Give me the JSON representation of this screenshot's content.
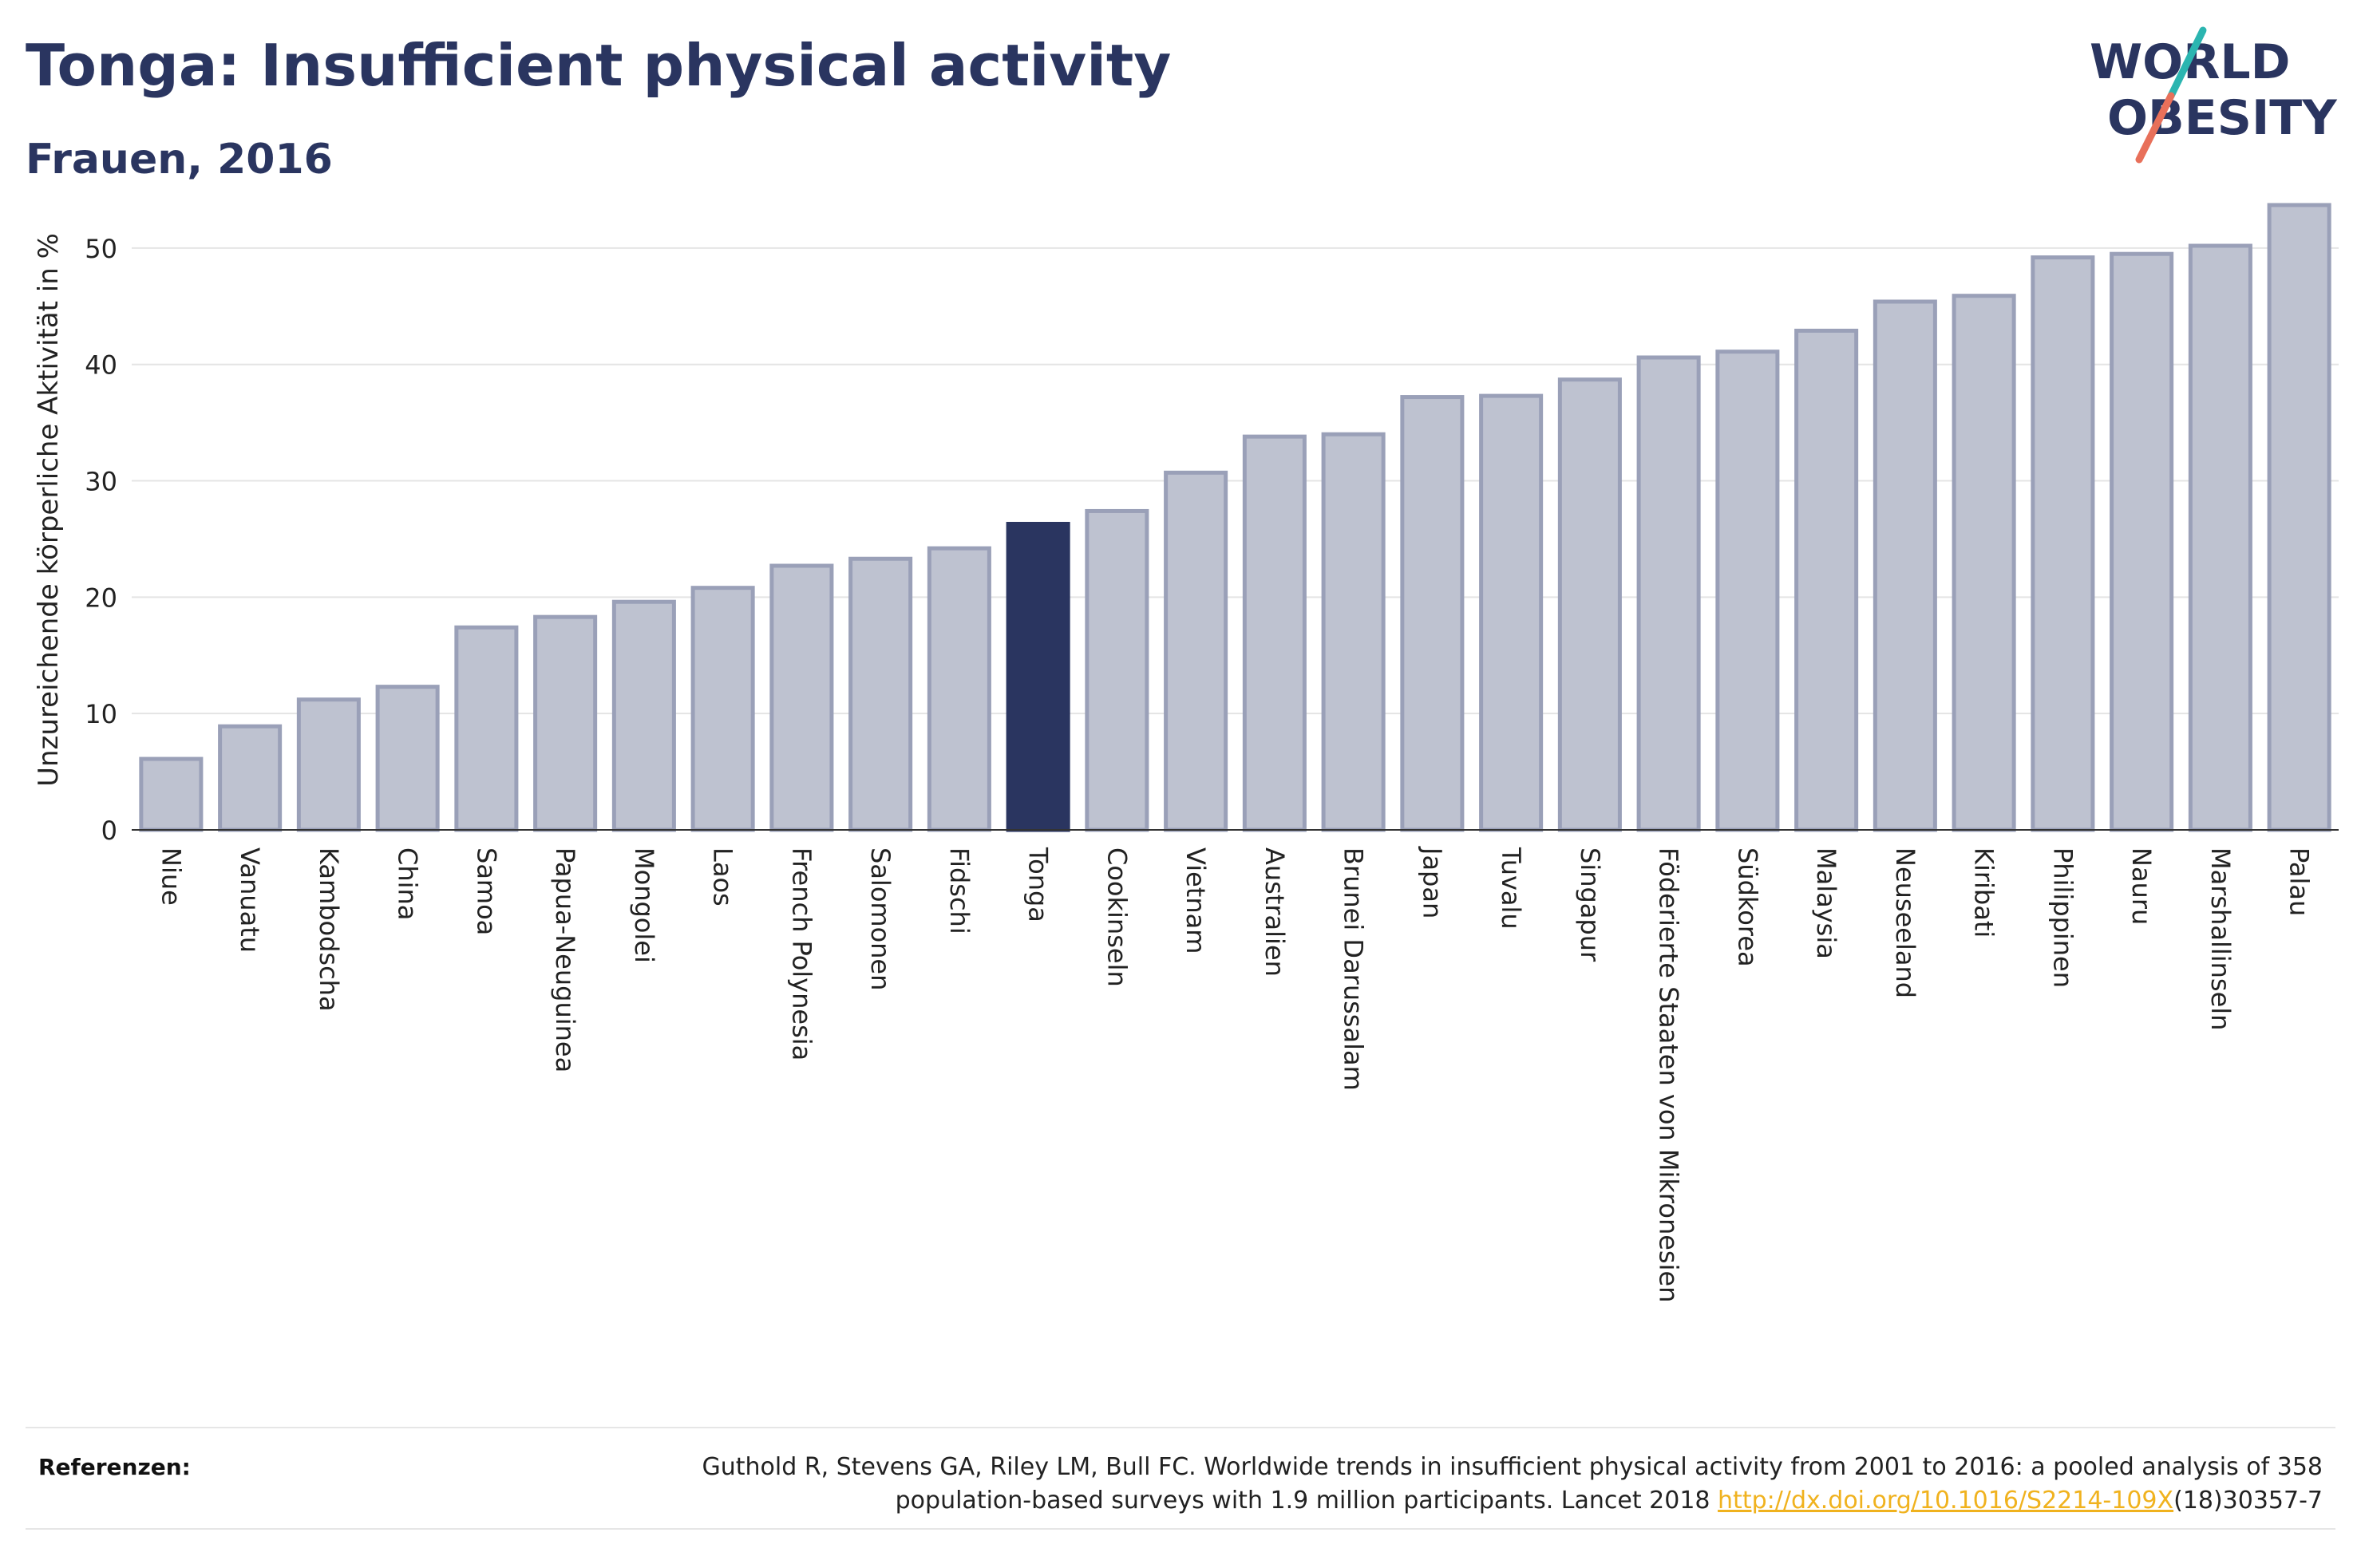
{
  "header": {
    "title": "Tonga: Insufficient physical activity",
    "subtitle": "Frauen, 2016"
  },
  "logo": {
    "line1": "WORLD",
    "line2": "OBESITY",
    "colors": {
      "text": "#2a3560",
      "slash_top": "#2bb5b0",
      "slash_bottom": "#e8705a"
    }
  },
  "chart_data": {
    "type": "bar",
    "ylabel": "Unzureichende körperliche Aktivität in %",
    "xlabel": "",
    "ylim": [
      0,
      55
    ],
    "yticks": [
      0,
      10,
      20,
      30,
      40,
      50
    ],
    "grid": true,
    "highlight": "Tonga",
    "colors": {
      "bar": "#bec2d0",
      "bar_border": "#9aa0b8",
      "highlight": "#2a3560",
      "grid": "#e4e4e4"
    },
    "categories": [
      "Niue",
      "Vanuatu",
      "Kambodscha",
      "China",
      "Samoa",
      "Papua-Neuguinea",
      "Mongolei",
      "Laos",
      "French Polynesia",
      "Salomonen",
      "Fidschi",
      "Tonga",
      "Cookinseln",
      "Vietnam",
      "Australien",
      "Brunei Darussalam",
      "Japan",
      "Tuvalu",
      "Singapur",
      "Föderierte Staaten von Mikronesien",
      "Südkorea",
      "Malaysia",
      "Neuseeland",
      "Kiribati",
      "Philippinen",
      "Nauru",
      "Marshallinseln",
      "Palau"
    ],
    "values": [
      6.1,
      8.9,
      11.2,
      12.3,
      17.4,
      18.3,
      19.6,
      20.8,
      22.7,
      23.3,
      24.2,
      26.3,
      27.4,
      30.7,
      33.8,
      34.0,
      37.2,
      37.3,
      38.7,
      40.6,
      41.1,
      42.9,
      45.4,
      45.9,
      49.2,
      49.5,
      50.2,
      53.7
    ]
  },
  "footer": {
    "ref_label": "Referenzen:",
    "ref_line1": "Guthold R, Stevens GA, Riley LM, Bull FC. Worldwide trends in insufficient physical activity from 2001 to 2016: a pooled analysis of 358",
    "ref_line2_prefix": "population-based surveys with 1.9 million participants. Lancet 2018 ",
    "ref_link": "http://dx.doi.org/10.1016/S2214-109X",
    "ref_line2_suffix": "(18)30357-7"
  }
}
